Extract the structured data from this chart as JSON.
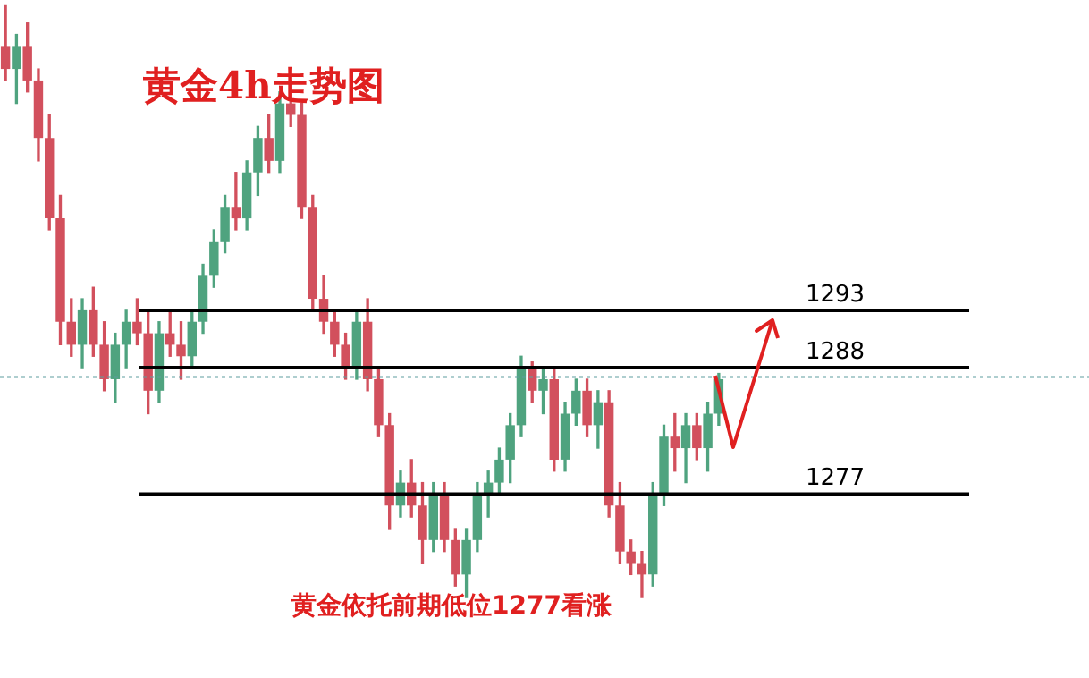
{
  "chart_data": {
    "type": "candlestick",
    "title": "黄金4h走势图",
    "annotations": [
      "黄金依托前期低位1277看涨"
    ],
    "categories": [
      null,
      null,
      null,
      null,
      null,
      null,
      null,
      null,
      null,
      null,
      null,
      null,
      null,
      null,
      null,
      null,
      null,
      null,
      null,
      null,
      null,
      null,
      null,
      null,
      null,
      null,
      null,
      null,
      null,
      null,
      null,
      null,
      null,
      null,
      null,
      null,
      null,
      null,
      null,
      null,
      null,
      null,
      null,
      null,
      null,
      null,
      null,
      null,
      null,
      null,
      null,
      null,
      null,
      null,
      null,
      null,
      null,
      null,
      null,
      null,
      null,
      null,
      null,
      null,
      null,
      null
    ],
    "ohlc": [
      [
        1316,
        1319.5,
        1313,
        1314
      ],
      [
        1314,
        1317,
        1311,
        1316
      ],
      [
        1316,
        1318,
        1312,
        1313
      ],
      [
        1313,
        1314,
        1306,
        1308
      ],
      [
        1308,
        1310,
        1300,
        1301
      ],
      [
        1301,
        1303,
        1290,
        1292
      ],
      [
        1292,
        1294,
        1289,
        1290
      ],
      [
        1290,
        1294,
        1288,
        1293
      ],
      [
        1293,
        1295,
        1289,
        1290
      ],
      [
        1290,
        1292,
        1286,
        1287
      ],
      [
        1287,
        1291,
        1285,
        1290
      ],
      [
        1290,
        1293,
        1288,
        1292
      ],
      [
        1292,
        1294,
        1290,
        1291
      ],
      [
        1291,
        1293,
        1284,
        1286
      ],
      [
        1286,
        1292,
        1285,
        1291
      ],
      [
        1291,
        1293,
        1289,
        1290
      ],
      [
        1290,
        1292,
        1287,
        1289
      ],
      [
        1289,
        1293,
        1288,
        1292
      ],
      [
        1292,
        1297,
        1291,
        1296
      ],
      [
        1296,
        1300,
        1295,
        1299
      ],
      [
        1299,
        1303,
        1298,
        1302
      ],
      [
        1302,
        1305,
        1300,
        1301
      ],
      [
        1301,
        1306,
        1300,
        1305
      ],
      [
        1305,
        1309,
        1303,
        1308
      ],
      [
        1308,
        1310,
        1305,
        1306
      ],
      [
        1306,
        1312,
        1305,
        1311
      ],
      [
        1311,
        1313,
        1309,
        1310
      ],
      [
        1310,
        1311,
        1301,
        1302
      ],
      [
        1302,
        1303,
        1293,
        1294
      ],
      [
        1294,
        1296,
        1291,
        1292
      ],
      [
        1292,
        1293,
        1289,
        1290
      ],
      [
        1290,
        1291,
        1287,
        1288
      ],
      [
        1288,
        1293,
        1287,
        1292
      ],
      [
        1292,
        1294,
        1286,
        1287
      ],
      [
        1287,
        1288,
        1282,
        1283
      ],
      [
        1283,
        1284,
        1274,
        1276
      ],
      [
        1276,
        1279,
        1275,
        1278
      ],
      [
        1278,
        1280,
        1275,
        1276
      ],
      [
        1276,
        1278,
        1271,
        1273
      ],
      [
        1273,
        1278,
        1272,
        1277
      ],
      [
        1277,
        1278,
        1272,
        1273
      ],
      [
        1273,
        1274,
        1269,
        1270
      ],
      [
        1270,
        1274,
        1268,
        1273
      ],
      [
        1273,
        1278,
        1272,
        1277
      ],
      [
        1277,
        1279,
        1275,
        1278
      ],
      [
        1278,
        1281,
        1277,
        1280
      ],
      [
        1280,
        1284,
        1278,
        1283
      ],
      [
        1283,
        1289,
        1282,
        1288
      ],
      [
        1288,
        1288.5,
        1285,
        1286
      ],
      [
        1286,
        1288,
        1284,
        1287
      ],
      [
        1287,
        1288,
        1279,
        1280
      ],
      [
        1280,
        1285,
        1279,
        1284
      ],
      [
        1284,
        1287,
        1283,
        1286
      ],
      [
        1286,
        1287,
        1282,
        1283
      ],
      [
        1283,
        1286,
        1281,
        1285
      ],
      [
        1285,
        1286,
        1275,
        1276
      ],
      [
        1276,
        1278,
        1271,
        1272
      ],
      [
        1272,
        1273,
        1270,
        1271
      ],
      [
        1271,
        1272,
        1268,
        1270
      ],
      [
        1270,
        1278,
        1269,
        1277
      ],
      [
        1277,
        1283,
        1276,
        1282
      ],
      [
        1282,
        1284,
        1279,
        1281
      ],
      [
        1281,
        1284,
        1278,
        1283
      ],
      [
        1283,
        1284,
        1280,
        1281
      ],
      [
        1281,
        1285,
        1279,
        1284
      ],
      [
        1284,
        1287.5,
        1283,
        1287
      ]
    ],
    "ylim": [
      1261,
      1320
    ],
    "tick_labels": false,
    "ref_lines": [
      {
        "axis": "y",
        "value": 1293,
        "label": "1293",
        "color": "#000000"
      },
      {
        "axis": "y",
        "value": 1288,
        "label": "1288",
        "color": "#000000"
      },
      {
        "axis": "y",
        "value": 1277,
        "label": "1277",
        "color": "#000000"
      },
      {
        "axis": "y",
        "value": 1287.2,
        "color": "#5f9ea0",
        "line_style": "dotted"
      }
    ]
  }
}
